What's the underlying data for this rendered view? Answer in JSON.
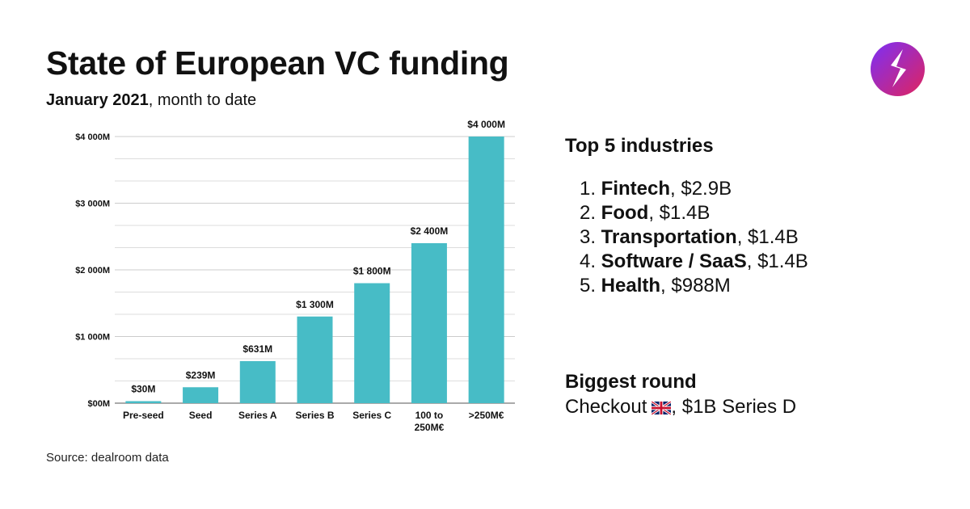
{
  "header": {
    "title": "State of European VC funding",
    "subtitle_bold": "January 2021",
    "subtitle_rest": ", month to date"
  },
  "colors": {
    "bar": "#47bcc6",
    "grid": "#dddddd",
    "logo_gradient": [
      "#7b2ff7",
      "#e0245e"
    ]
  },
  "icons": {
    "logo": "bolt-logo-icon",
    "flag": "uk-flag-icon"
  },
  "chart_data": {
    "type": "bar",
    "categories": [
      "Pre-seed",
      "Seed",
      "Series A",
      "Series B",
      "Series C",
      "100 to 250M€",
      ">250M€"
    ],
    "values": [
      30,
      239,
      631,
      1300,
      1800,
      2400,
      4000
    ],
    "value_labels": [
      "$30M",
      "$239M",
      "$631M",
      "$1 300M",
      "$1 800M",
      "$2 400M",
      "$4 000M"
    ],
    "y_ticks": [
      0,
      1000,
      2000,
      3000,
      4000
    ],
    "y_tick_labels": [
      "$00M",
      "$1 000M",
      "$2 000M",
      "$3 000M",
      "$4 000M"
    ],
    "ylim": [
      0,
      4000
    ],
    "grid": true,
    "title": "",
    "xlabel": "",
    "ylabel": ""
  },
  "industries": {
    "heading": "Top 5 industries",
    "items": [
      {
        "rank": "1.",
        "name": "Fintech",
        "value": ", $2.9B"
      },
      {
        "rank": "2.",
        "name": "Food",
        "value": ", $1.4B"
      },
      {
        "rank": "3.",
        "name": "Transportation",
        "value": ", $1.4B"
      },
      {
        "rank": "4.",
        "name": "Software / SaaS",
        "value": ", $1.4B"
      },
      {
        "rank": "5.",
        "name": "Health",
        "value": ", $988M"
      }
    ]
  },
  "biggest_round": {
    "heading": "Biggest round",
    "company": "Checkout",
    "detail": ", $1B Series D"
  },
  "footer": {
    "source": "Source: dealroom data"
  }
}
